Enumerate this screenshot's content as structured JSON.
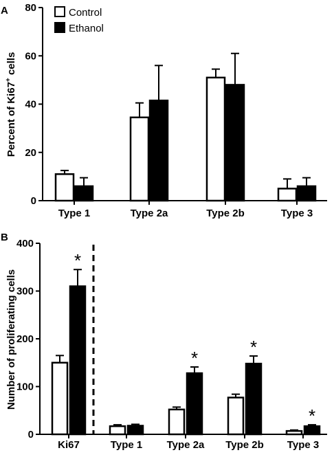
{
  "legend": {
    "items": [
      {
        "label": "Control",
        "fill": "#ffffff"
      },
      {
        "label": "Ethanol",
        "fill": "#000000"
      }
    ]
  },
  "chart_data": [
    {
      "panel_label": "A",
      "type": "bar",
      "ylabel_main": "Percent of Ki67",
      "ylabel_sup": "+",
      "ylabel_tail": " cells",
      "ylim": [
        0,
        80
      ],
      "yticks": [
        0,
        20,
        40,
        60,
        80
      ],
      "categories": [
        "Type 1",
        "Type 2a",
        "Type 2b",
        "Type 3"
      ],
      "series": [
        {
          "name": "Control",
          "values": [
            11,
            34.5,
            51,
            5
          ],
          "errors": [
            1.5,
            6,
            3.5,
            4
          ]
        },
        {
          "name": "Ethanol",
          "values": [
            6,
            41.5,
            48,
            6
          ],
          "errors": [
            3.5,
            14.5,
            13,
            3.5
          ]
        }
      ],
      "annotations": [],
      "grid": false,
      "legend_position": "top-left"
    },
    {
      "panel_label": "B",
      "type": "bar",
      "ylabel": "Number of proliferating cells",
      "ylim": [
        0,
        400
      ],
      "yticks": [
        0,
        100,
        200,
        300,
        400
      ],
      "categories": [
        "Ki67",
        "Type 1",
        "Type 2a",
        "Type 2b",
        "Type 3"
      ],
      "series": [
        {
          "name": "Control",
          "values": [
            150,
            17,
            52,
            77,
            7
          ],
          "errors": [
            15,
            3,
            5,
            7,
            2
          ]
        },
        {
          "name": "Ethanol",
          "values": [
            310,
            18,
            128,
            148,
            17
          ],
          "errors": [
            35,
            3,
            13,
            16,
            3
          ]
        }
      ],
      "annotations": [
        {
          "category": "Ki67",
          "text": "*"
        },
        {
          "category": "Type 2a",
          "text": "*"
        },
        {
          "category": "Type 2b",
          "text": "*"
        },
        {
          "category": "Type 3",
          "text": "*"
        }
      ],
      "dashed_divider_after": "Ki67",
      "grid": false
    }
  ]
}
